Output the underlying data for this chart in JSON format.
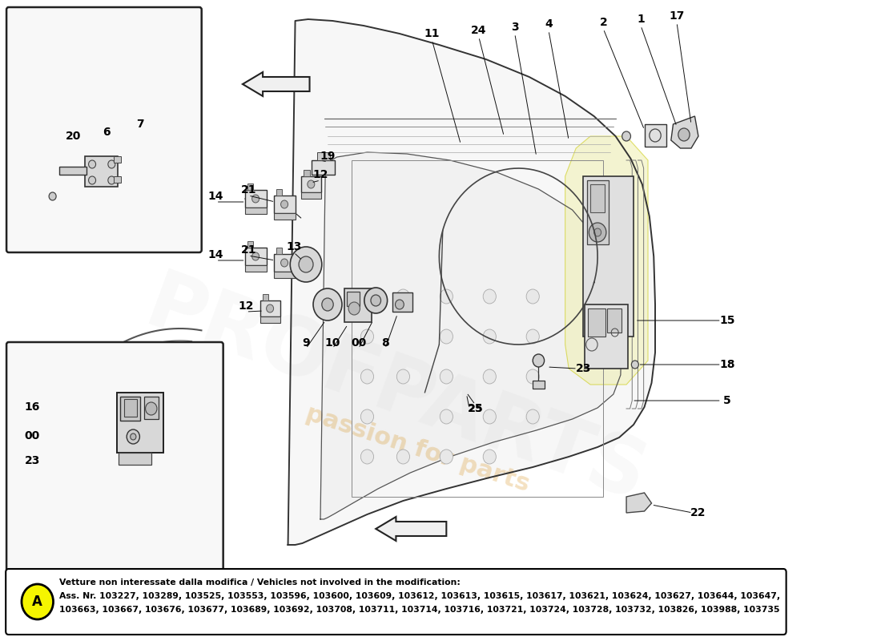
{
  "bg_color": "#ffffff",
  "note_box": {
    "bold_text": "Vetture non interessate dalla modifica / Vehicles not involved in the modification:",
    "normal_text": "Ass. Nr. 103227, 103289, 103525, 103553, 103596, 103600, 103609, 103612, 103613, 103615, 103617, 103621, 103624, 103627, 103644, 103647,",
    "normal_text2": "103663, 103667, 103676, 103677, 103689, 103692, 103708, 103711, 103714, 103716, 103721, 103724, 103728, 103732, 103826, 103988, 103735",
    "circle_color": "#f5f500",
    "circle_label": "A"
  },
  "watermark_text": "passion for parts",
  "watermark_color": "#d4880a",
  "watermark_alpha": 0.25,
  "profparts_color": "#cccccc",
  "profparts_alpha": 0.12
}
